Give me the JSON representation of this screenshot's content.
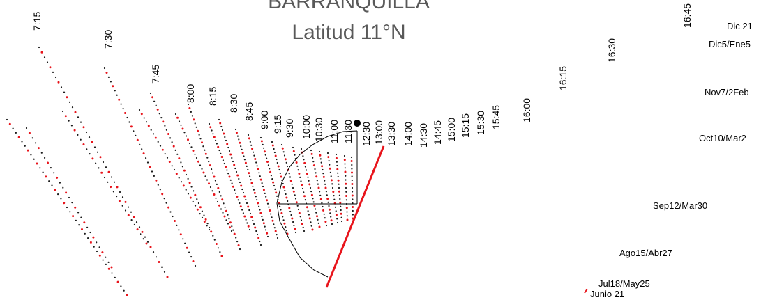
{
  "title": {
    "line1": "BARRANQUILLA",
    "line2": "Latitud 11°N"
  },
  "hour_labels": [
    "7:15",
    "7:30",
    "7:45",
    "8:00",
    "8:15",
    "8:30",
    "8:45",
    "9:00",
    "9:15",
    "9:30",
    "10:00",
    "10:30",
    "11:00",
    "11:30",
    "12:30",
    "13:00",
    "13:30",
    "14:00",
    "14:30",
    "14:45",
    "15:00",
    "15:15",
    "15:30",
    "15:45",
    "16:00",
    "16:15",
    "16:30",
    "16:45"
  ],
  "date_labels": [
    "Dic 21",
    "Dic5/Ene5",
    "Nov7/2Feb",
    "Oct10/Mar2",
    "Sep12/Mar30",
    "Ago15/Abr27",
    "Jul18/May25",
    "Junio  21"
  ],
  "colors": {
    "gnomon": "#e8141b",
    "marker_red": "#e8141b",
    "marker_black": "#1a1a1a",
    "outline": "#000000",
    "title": "#595959"
  }
}
